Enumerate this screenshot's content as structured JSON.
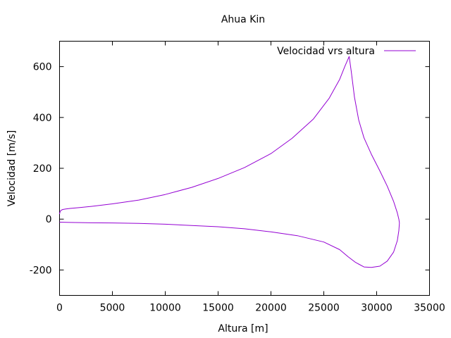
{
  "chart_data": {
    "type": "line",
    "title": "Ahua Kin",
    "xlabel": "Altura [m]",
    "ylabel": "Velocidad [m/s]",
    "xlim": [
      0,
      35000
    ],
    "ylim": [
      -300,
      700
    ],
    "xticks": [
      0,
      5000,
      10000,
      15000,
      20000,
      25000,
      30000,
      35000
    ],
    "yticks": [
      -200,
      0,
      200,
      400,
      600
    ],
    "xtick_labels": [
      "0",
      "5000",
      "10000",
      "15000",
      "20000",
      "25000",
      "30000",
      "35000"
    ],
    "ytick_labels": [
      "-200",
      "0",
      "200",
      "400",
      "600"
    ],
    "grid": false,
    "legend_position": "top-right",
    "series": [
      {
        "name": "Velocidad vrs altura",
        "color": "#9400d3",
        "x": [
          0,
          50,
          150,
          300,
          600,
          1000,
          2000,
          3000,
          5000,
          7500,
          10000,
          12500,
          15000,
          17500,
          20000,
          22000,
          24000,
          25500,
          26500,
          27000,
          27400,
          27600,
          27900,
          28300,
          28800,
          29500,
          30300,
          31000,
          31600,
          31950,
          32100,
          32150,
          32100,
          31950,
          31600,
          31000,
          30300,
          29500,
          28800,
          28000,
          27300,
          26500,
          25000,
          22500,
          20000,
          17500,
          15000,
          12500,
          10000,
          7500,
          5000,
          2500,
          1000,
          0
        ],
        "y": [
          20,
          30,
          35,
          38,
          40,
          42,
          46,
          50,
          60,
          75,
          97,
          125,
          160,
          203,
          258,
          318,
          393,
          475,
          550,
          602,
          640,
          580,
          480,
          390,
          320,
          255,
          190,
          130,
          70,
          25,
          0,
          -15,
          -45,
          -85,
          -130,
          -165,
          -185,
          -190,
          -188,
          -170,
          -148,
          -120,
          -90,
          -65,
          -50,
          -38,
          -30,
          -25,
          -20,
          -17,
          -15,
          -14,
          -13,
          -12
        ]
      }
    ]
  }
}
